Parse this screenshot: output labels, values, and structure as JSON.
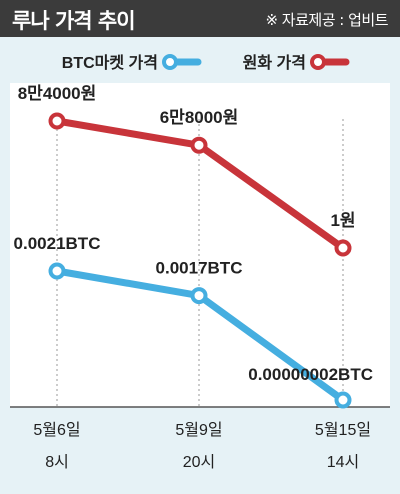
{
  "header": {
    "title": "루나 가격 추이",
    "source": "※ 자료제공 : 업비트"
  },
  "colors": {
    "header_bg": "#3b3b3b",
    "panel_bg": "#e6f2f6",
    "btc_series": "#45aee0",
    "krw_series": "#c8343a"
  },
  "chart_data": {
    "type": "line",
    "categories": [
      {
        "date": "5월6일",
        "time": "8시"
      },
      {
        "date": "5월9일",
        "time": "20시"
      },
      {
        "date": "5월15일",
        "time": "14시"
      }
    ],
    "series": [
      {
        "name": "원화 가격",
        "unit": "원",
        "values": [
          84000,
          68000,
          1
        ],
        "labels": [
          "8만4000원",
          "6만8000원",
          "1원"
        ],
        "color": "#c8343a"
      },
      {
        "name": "BTC마켓 가격",
        "unit": "BTC",
        "values": [
          0.0021,
          0.0017,
          2e-08
        ],
        "labels": [
          "0.0021BTC",
          "0.0017BTC",
          "0.00000002BTC"
        ],
        "color": "#45aee0"
      }
    ],
    "grid": "vertical dotted guide lines",
    "legend_placement": "top"
  }
}
